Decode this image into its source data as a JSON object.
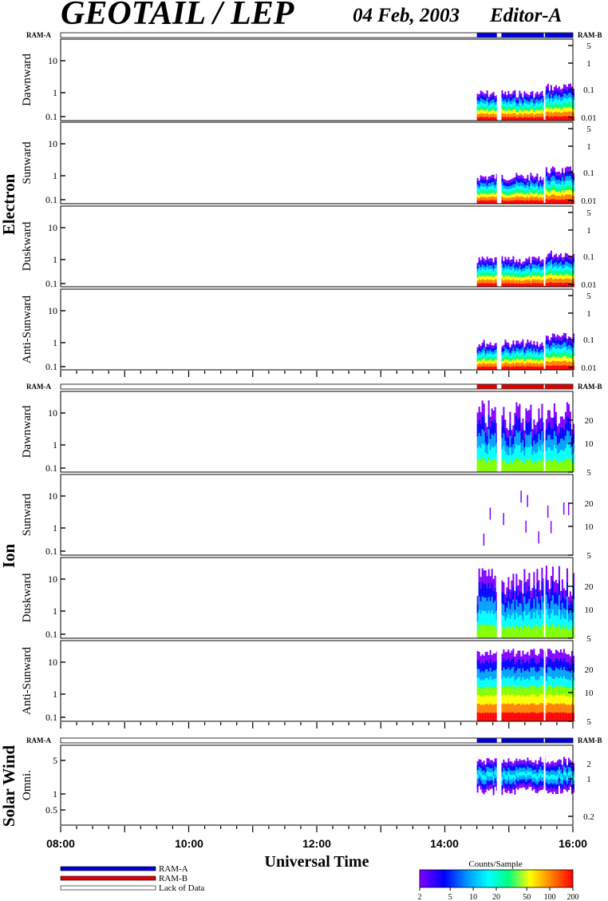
{
  "header": {
    "title": "GEOTAIL / LEP",
    "date": "04 Feb, 2003",
    "editor": "Editor-A"
  },
  "mode_labels": {
    "left": "RAM-A",
    "right": "RAM-B"
  },
  "groups": [
    {
      "name": "Electron",
      "panels": [
        "Dawnward",
        "Sunward",
        "Duskward",
        "Anti-Sunward"
      ]
    },
    {
      "name": "Ion",
      "panels": [
        "Dawnward",
        "Sunward",
        "Duskward",
        "Anti-Sunward"
      ]
    },
    {
      "name": "Solar Wind",
      "panels": [
        "Omni."
      ]
    }
  ],
  "colors": {
    "ram_a": "#0000dd",
    "ram_b": "#e00000",
    "lack": "#ffffff"
  },
  "chart_data": [
    {
      "type": "heatmap",
      "group": "Electron",
      "panels": [
        "Dawnward",
        "Sunward",
        "Duskward",
        "Anti-Sunward"
      ],
      "y_left_ticks": [
        "0.1",
        "1",
        "10"
      ],
      "y_right_ticks": [
        "0.01",
        "0.1",
        "1",
        "5"
      ],
      "x_range": [
        "08:00",
        "16:00"
      ],
      "data_intervals": [
        [
          "14:30",
          "14:48"
        ],
        [
          "14:53",
          "15:32"
        ],
        [
          "15:33",
          "16:00"
        ]
      ],
      "mode_bar": [
        {
          "mode": "RAM-A",
          "from": "14:30",
          "to": "16:00"
        }
      ],
      "mode_gaps": [
        [
          "14:48",
          "14:53"
        ],
        [
          "15:32",
          "15:33"
        ]
      ]
    },
    {
      "type": "heatmap",
      "group": "Ion",
      "panels": [
        "Dawnward",
        "Sunward",
        "Duskward",
        "Anti-Sunward"
      ],
      "y_left_ticks": [
        "0.1",
        "1",
        "10"
      ],
      "y_right_ticks": [
        "5",
        "10",
        "20"
      ],
      "x_range": [
        "08:00",
        "16:00"
      ],
      "data_intervals": [
        [
          "14:30",
          "14:48"
        ],
        [
          "14:53",
          "15:32"
        ],
        [
          "15:33",
          "16:00"
        ]
      ],
      "mode_bar": [
        {
          "mode": "RAM-B",
          "from": "14:30",
          "to": "16:00"
        }
      ],
      "mode_gaps": [
        [
          "14:48",
          "14:53"
        ],
        [
          "15:32",
          "15:33"
        ]
      ]
    },
    {
      "type": "heatmap",
      "group": "Solar Wind",
      "panels": [
        "Omni."
      ],
      "y_left_ticks": [
        "0.5",
        "1",
        "5"
      ],
      "y_right_ticks": [
        "0.2",
        "1",
        "2"
      ],
      "x_range": [
        "08:00",
        "16:00"
      ],
      "data_intervals": [
        [
          "14:30",
          "14:48"
        ],
        [
          "14:53",
          "15:32"
        ],
        [
          "15:33",
          "16:00"
        ]
      ],
      "mode_bar": [
        {
          "mode": "RAM-A",
          "from": "14:30",
          "to": "16:00"
        }
      ],
      "mode_gaps": [
        [
          "14:48",
          "14:53"
        ],
        [
          "15:32",
          "15:33"
        ]
      ]
    }
  ],
  "x_axis": {
    "label": "Universal Time",
    "ticks": [
      "08:00",
      "10:00",
      "12:00",
      "14:00",
      "16:00"
    ]
  },
  "legend": [
    {
      "label": "RAM-A",
      "color": "#0000dd"
    },
    {
      "label": "RAM-B",
      "color": "#e00000"
    },
    {
      "label": "Lack of Data",
      "color": "#ffffff"
    }
  ],
  "colorbar": {
    "title": "Counts/Sample",
    "ticks": [
      "2",
      "5",
      "10",
      "20",
      "50",
      "100",
      "200"
    ],
    "colors": [
      "#8000ff",
      "#0000ff",
      "#00a0ff",
      "#00ffff",
      "#00ff80",
      "#ffff00",
      "#ff8000",
      "#ff0000"
    ]
  }
}
